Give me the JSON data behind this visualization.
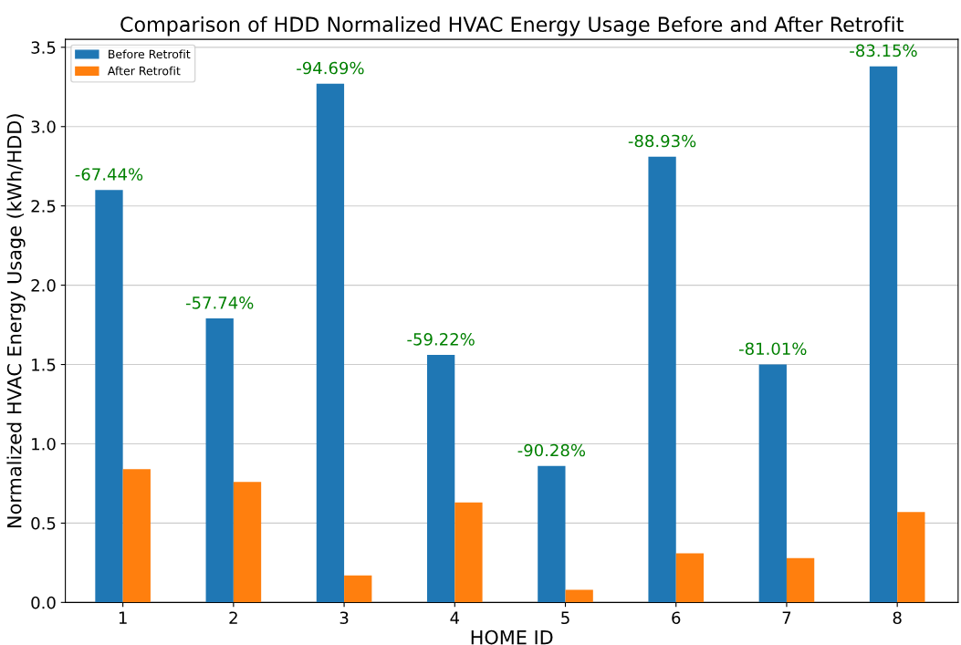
{
  "chart_data": {
    "type": "bar",
    "title": "Comparison of HDD Normalized HVAC Energy Usage Before and After Retrofit",
    "xlabel": "HOME ID",
    "ylabel": "Normalized HVAC Energy Usage (kWh/HDD)",
    "categories": [
      "1",
      "2",
      "3",
      "4",
      "5",
      "6",
      "7",
      "8"
    ],
    "series": [
      {
        "name": "Before Retrofit",
        "color": "#1f77b4",
        "values": [
          2.6,
          1.79,
          3.27,
          1.56,
          0.86,
          2.81,
          1.5,
          3.38
        ]
      },
      {
        "name": "After Retrofit",
        "color": "#ff7f0e",
        "values": [
          0.84,
          0.76,
          0.17,
          0.63,
          0.08,
          0.31,
          0.28,
          0.57
        ]
      }
    ],
    "annotations": [
      {
        "text": "-67.44%",
        "x": "1",
        "y": 2.6
      },
      {
        "text": "-57.74%",
        "x": "2",
        "y": 1.79
      },
      {
        "text": "-94.69%",
        "x": "3",
        "y": 3.27
      },
      {
        "text": "-59.22%",
        "x": "4",
        "y": 1.56
      },
      {
        "text": "-90.28%",
        "x": "5",
        "y": 0.86
      },
      {
        "text": "-88.93%",
        "x": "6",
        "y": 2.81
      },
      {
        "text": "-81.01%",
        "x": "7",
        "y": 1.5
      },
      {
        "text": "-83.15%",
        "x": "8",
        "y": 3.38
      }
    ],
    "ylim": [
      0,
      3.55
    ],
    "yticks": [
      {
        "value": 0,
        "label": "0.0"
      },
      {
        "value": 0.5,
        "label": "0.5"
      },
      {
        "value": 1,
        "label": "1.0"
      },
      {
        "value": 1.5,
        "label": "1.5"
      },
      {
        "value": 2,
        "label": "2.0"
      },
      {
        "value": 2.5,
        "label": "2.5"
      },
      {
        "value": 3,
        "label": "3.0"
      },
      {
        "value": 3.5,
        "label": "3.5"
      }
    ],
    "grid": "y",
    "legend": "top left"
  }
}
